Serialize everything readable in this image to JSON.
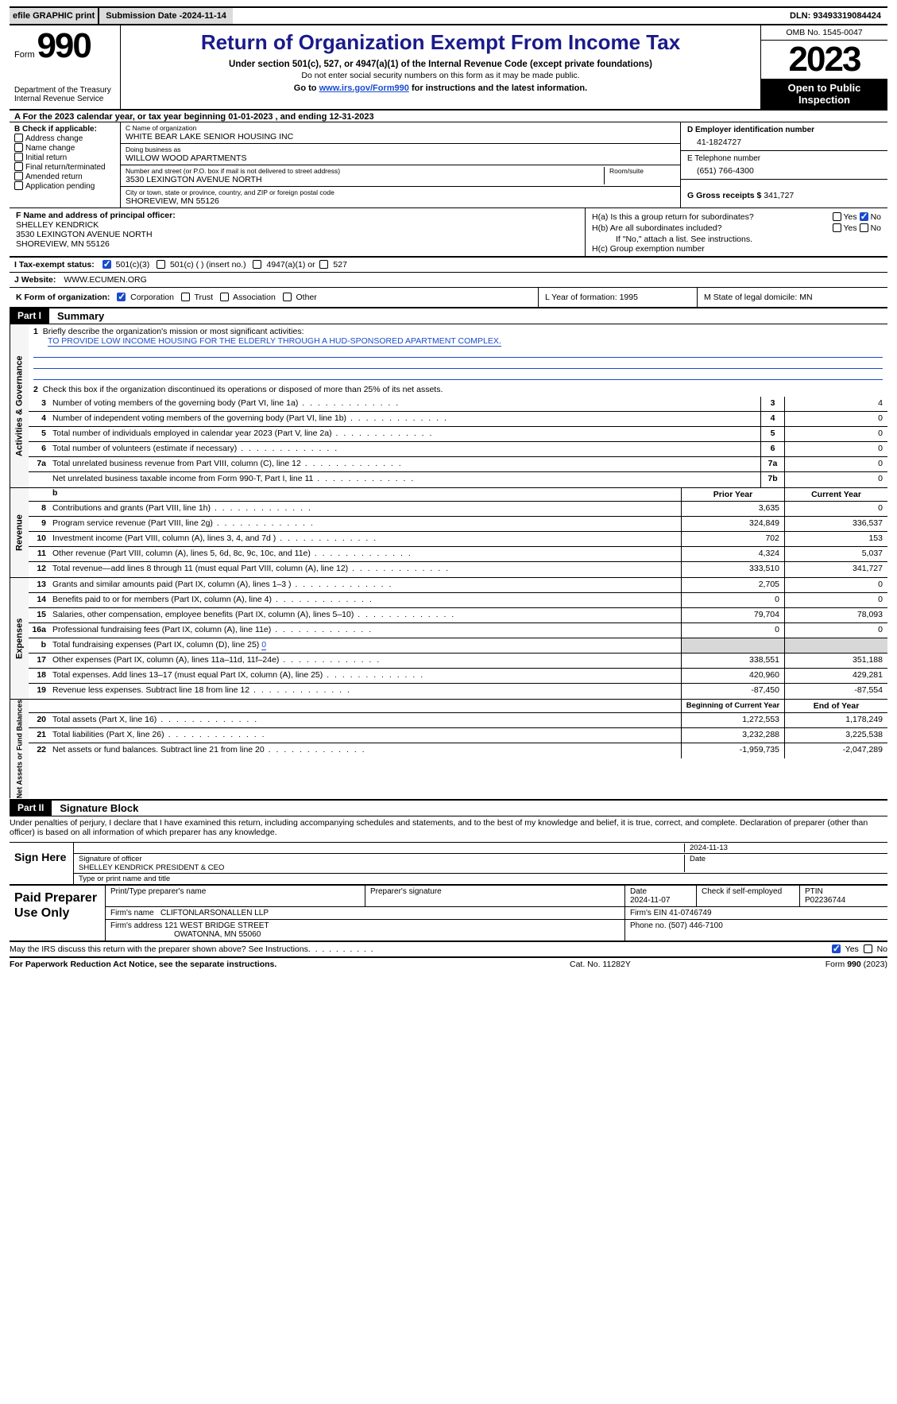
{
  "colors": {
    "accent": "#1a4bcc",
    "headerBg": "#000000",
    "gray": "#d8d8d8"
  },
  "topbar": {
    "efile": "efile GRAPHIC print",
    "subdate_label": "Submission Date - ",
    "subdate": "2024-11-14",
    "dln_label": "DLN: ",
    "dln": "93493319084424"
  },
  "header": {
    "form_word": "Form",
    "form_no": "990",
    "dept": "Department of the Treasury",
    "irs": "Internal Revenue Service",
    "title": "Return of Organization Exempt From Income Tax",
    "sub1": "Under section 501(c), 527, or 4947(a)(1) of the Internal Revenue Code (except private foundations)",
    "sub2": "Do not enter social security numbers on this form as it may be made public.",
    "sub3_pre": "Go to ",
    "sub3_link": "www.irs.gov/Form990",
    "sub3_post": " for instructions and the latest information.",
    "omb": "OMB No. 1545-0047",
    "year": "2023",
    "open": "Open to Public Inspection"
  },
  "lineA": "A For the 2023 calendar year, or tax year beginning 01-01-2023   , and ending 12-31-2023",
  "boxB": {
    "label": "B Check if applicable:",
    "opts": [
      "Address change",
      "Name change",
      "Initial return",
      "Final return/terminated",
      "Amended return",
      "Application pending"
    ]
  },
  "boxC": {
    "name_lbl": "C Name of organization",
    "name": "WHITE BEAR LAKE SENIOR HOUSING INC",
    "dba_lbl": "Doing business as",
    "dba": "WILLOW WOOD APARTMENTS",
    "addr_lbl": "Number and street (or P.O. box if mail is not delivered to street address)",
    "room_lbl": "Room/suite",
    "addr": "3530 LEXINGTON AVENUE NORTH",
    "city_lbl": "City or town, state or province, country, and ZIP or foreign postal code",
    "city": "SHOREVIEW, MN  55126"
  },
  "boxD": {
    "lbl": "D Employer identification number",
    "val": "41-1824727"
  },
  "boxE": {
    "lbl": "E Telephone number",
    "val": "(651) 766-4300"
  },
  "boxG": {
    "lbl": "G Gross receipts $ ",
    "val": "341,727"
  },
  "boxF": {
    "lbl": "F  Name and address of principal officer:",
    "name": "SHELLEY KENDRICK",
    "addr1": "3530 LEXINGTON AVENUE NORTH",
    "addr2": "SHOREVIEW, MN  55126"
  },
  "boxH": {
    "a_lbl": "H(a)  Is this a group return for subordinates?",
    "b_lbl": "H(b)  Are all subordinates included?",
    "b_note": "If \"No,\" attach a list. See instructions.",
    "c_lbl": "H(c)  Group exemption number "
  },
  "rowI": {
    "lbl": "I   Tax-exempt status:",
    "o1": "501(c)(3)",
    "o2": "501(c) (  ) (insert no.)",
    "o3": "4947(a)(1) or",
    "o4": "527"
  },
  "rowJ": {
    "lbl": "J   Website: ",
    "val": "WWW.ECUMEN.ORG"
  },
  "rowK": {
    "lbl": "K Form of organization:",
    "opts": [
      "Corporation",
      "Trust",
      "Association",
      "Other"
    ],
    "L": "L Year of formation: 1995",
    "M": "M State of legal domicile: MN"
  },
  "part1": {
    "hdr": "Part I",
    "title": "Summary"
  },
  "gov": {
    "label": "Activities & Governance",
    "l1_lbl": "Briefly describe the organization's mission or most significant activities:",
    "l1_val": "TO PROVIDE LOW INCOME HOUSING FOR THE ELDERLY THROUGH A HUD-SPONSORED APARTMENT COMPLEX.",
    "l2": "Check this box       if the organization discontinued its operations or disposed of more than 25% of its net assets.",
    "rows": [
      {
        "n": "3",
        "d": "Number of voting members of the governing body (Part VI, line 1a)",
        "nc": "3",
        "v": "4"
      },
      {
        "n": "4",
        "d": "Number of independent voting members of the governing body (Part VI, line 1b)",
        "nc": "4",
        "v": "0"
      },
      {
        "n": "5",
        "d": "Total number of individuals employed in calendar year 2023 (Part V, line 2a)",
        "nc": "5",
        "v": "0"
      },
      {
        "n": "6",
        "d": "Total number of volunteers (estimate if necessary)",
        "nc": "6",
        "v": "0"
      },
      {
        "n": "7a",
        "d": "Total unrelated business revenue from Part VIII, column (C), line 12",
        "nc": "7a",
        "v": "0"
      },
      {
        "n": "",
        "d": "Net unrelated business taxable income from Form 990-T, Part I, line 11",
        "nc": "7b",
        "v": "0"
      }
    ]
  },
  "rev": {
    "label": "Revenue",
    "py": "Prior Year",
    "cy": "Current Year",
    "rows": [
      {
        "n": "8",
        "d": "Contributions and grants (Part VIII, line 1h)",
        "py": "3,635",
        "cy": "0"
      },
      {
        "n": "9",
        "d": "Program service revenue (Part VIII, line 2g)",
        "py": "324,849",
        "cy": "336,537"
      },
      {
        "n": "10",
        "d": "Investment income (Part VIII, column (A), lines 3, 4, and 7d )",
        "py": "702",
        "cy": "153"
      },
      {
        "n": "11",
        "d": "Other revenue (Part VIII, column (A), lines 5, 6d, 8c, 9c, 10c, and 11e)",
        "py": "4,324",
        "cy": "5,037"
      },
      {
        "n": "12",
        "d": "Total revenue—add lines 8 through 11 (must equal Part VIII, column (A), line 12)",
        "py": "333,510",
        "cy": "341,727"
      }
    ]
  },
  "exp": {
    "label": "Expenses",
    "rows": [
      {
        "n": "13",
        "d": "Grants and similar amounts paid (Part IX, column (A), lines 1–3 )",
        "py": "2,705",
        "cy": "0"
      },
      {
        "n": "14",
        "d": "Benefits paid to or for members (Part IX, column (A), line 4)",
        "py": "0",
        "cy": "0"
      },
      {
        "n": "15",
        "d": "Salaries, other compensation, employee benefits (Part IX, column (A), lines 5–10)",
        "py": "79,704",
        "cy": "78,093"
      },
      {
        "n": "16a",
        "d": "Professional fundraising fees (Part IX, column (A), line 11e)",
        "py": "0",
        "cy": "0"
      },
      {
        "n": "b",
        "d": "Total fundraising expenses (Part IX, column (D), line 25) ",
        "fund": "0",
        "gray": true
      },
      {
        "n": "17",
        "d": "Other expenses (Part IX, column (A), lines 11a–11d, 11f–24e)",
        "py": "338,551",
        "cy": "351,188"
      },
      {
        "n": "18",
        "d": "Total expenses. Add lines 13–17 (must equal Part IX, column (A), line 25)",
        "py": "420,960",
        "cy": "429,281"
      },
      {
        "n": "19",
        "d": "Revenue less expenses. Subtract line 18 from line 12",
        "py": "-87,450",
        "cy": "-87,554"
      }
    ]
  },
  "net": {
    "label": "Net Assets or Fund Balances",
    "by": "Beginning of Current Year",
    "ey": "End of Year",
    "rows": [
      {
        "n": "20",
        "d": "Total assets (Part X, line 16)",
        "py": "1,272,553",
        "cy": "1,178,249"
      },
      {
        "n": "21",
        "d": "Total liabilities (Part X, line 26)",
        "py": "3,232,288",
        "cy": "3,225,538"
      },
      {
        "n": "22",
        "d": "Net assets or fund balances. Subtract line 21 from line 20",
        "py": "-1,959,735",
        "cy": "-2,047,289"
      }
    ]
  },
  "part2": {
    "hdr": "Part II",
    "title": "Signature Block"
  },
  "perjury": "Under penalties of perjury, I declare that I have examined this return, including accompanying schedules and statements, and to the best of my knowledge and belief, it is true, correct, and complete. Declaration of preparer (other than officer) is based on all information of which preparer has any knowledge.",
  "sign": {
    "here": "Sign Here",
    "date": "2024-11-13",
    "sig_lbl": "Signature of officer",
    "name": "SHELLEY KENDRICK  PRESIDENT & CEO",
    "type_lbl": "Type or print name and title",
    "date_lbl": "Date"
  },
  "paid": {
    "title": "Paid Preparer Use Only",
    "h1": "Print/Type preparer's name",
    "h2": "Preparer's signature",
    "h3": "Date",
    "h3v": "2024-11-07",
    "h4": "Check        if self-employed",
    "h5": "PTIN",
    "h5v": "P02236744",
    "firm_lbl": "Firm's name   ",
    "firm": "CLIFTONLARSONALLEN LLP",
    "ein_lbl": "Firm's EIN  ",
    "ein": "41-0746749",
    "addr_lbl": "Firm's address ",
    "addr1": "121 WEST BRIDGE STREET",
    "addr2": "OWATONNA, MN  55060",
    "phone_lbl": "Phone no. ",
    "phone": "(507) 446-7100"
  },
  "discuss": "May the IRS discuss this return with the preparer shown above? See Instructions.",
  "foot": {
    "l": "For Paperwork Reduction Act Notice, see the separate instructions.",
    "m": "Cat. No. 11282Y",
    "r_pre": "Form ",
    "r_b": "990",
    "r_post": " (2023)"
  },
  "yes": "Yes",
  "no": "No"
}
